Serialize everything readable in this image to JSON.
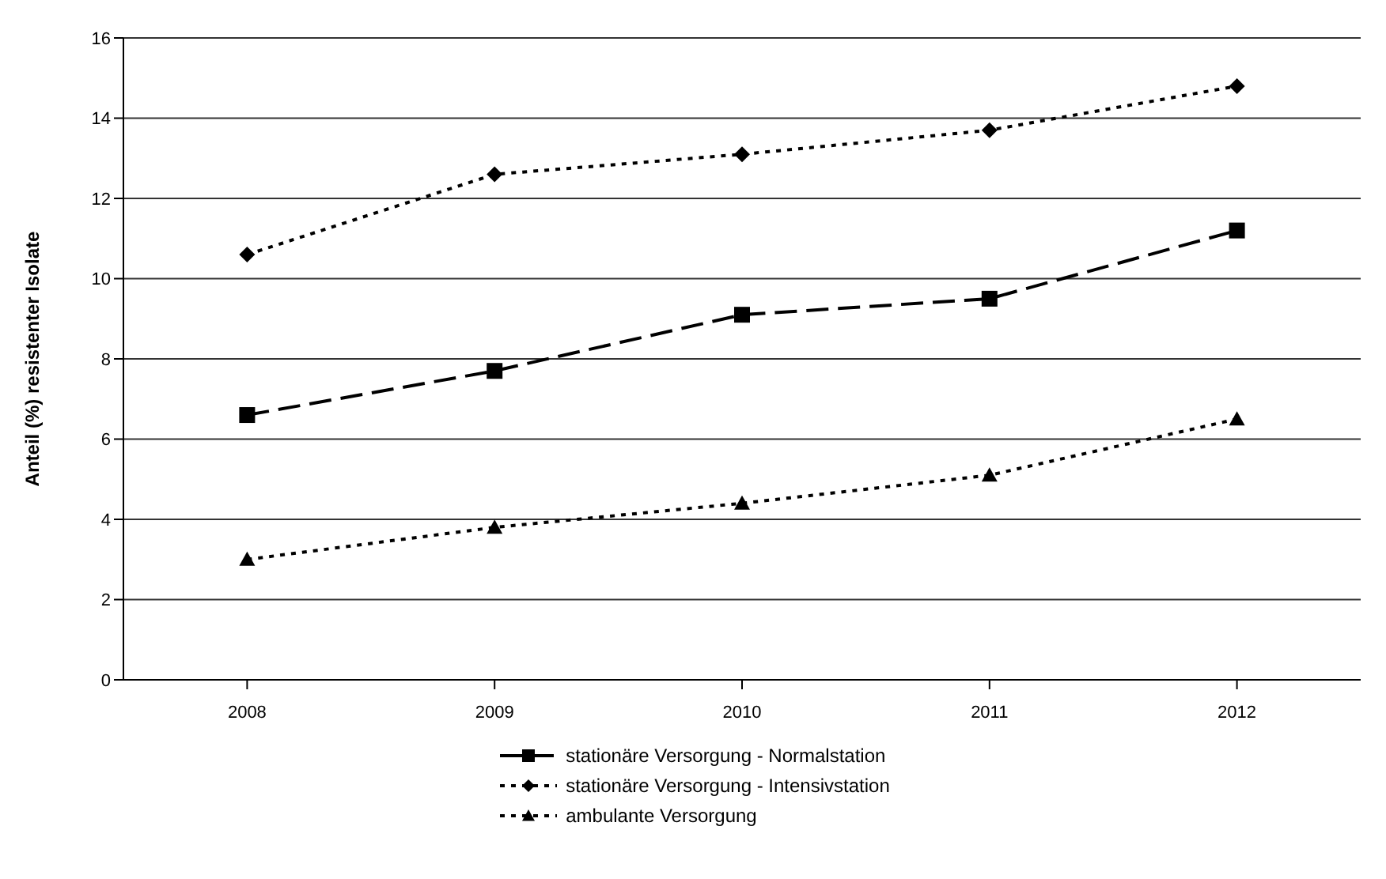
{
  "chart_data": {
    "type": "line",
    "ylabel": "Anteil (%) resistenter Isolate",
    "categories": [
      "2008",
      "2009",
      "2010",
      "2011",
      "2012"
    ],
    "series": [
      {
        "name": "stationäre Versorgung - Normalstation",
        "color": "#000000",
        "marker": "square",
        "line_style": "dashed",
        "values": [
          6.6,
          7.7,
          9.1,
          9.5,
          11.2
        ]
      },
      {
        "name": "stationäre Versorgung - Intensivstation",
        "color": "#000000",
        "marker": "diamond",
        "line_style": "dotted",
        "values": [
          10.6,
          12.6,
          13.1,
          13.7,
          14.8
        ]
      },
      {
        "name": "ambulante Versorgung",
        "color": "#000000",
        "marker": "triangle",
        "line_style": "dotted",
        "values": [
          3.0,
          3.8,
          4.4,
          5.1,
          6.5
        ]
      }
    ],
    "ylim": [
      0,
      16
    ],
    "yticks": [
      0,
      2,
      4,
      6,
      8,
      10,
      12,
      14,
      16
    ],
    "grid": "y",
    "legend": "bottom"
  }
}
